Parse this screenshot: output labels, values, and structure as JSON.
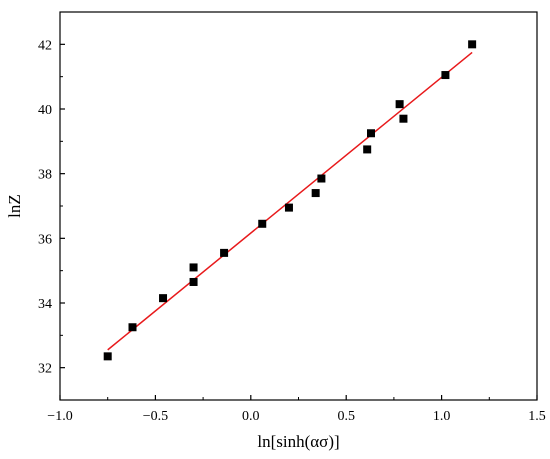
{
  "chart_data": {
    "type": "scatter",
    "title": "",
    "xlabel": "ln[sinh(ασ)]",
    "ylabel": "lnZ",
    "xlim": [
      -1.0,
      1.5
    ],
    "ylim": [
      31,
      43
    ],
    "xticks": [
      -1.0,
      -0.5,
      0.0,
      0.5,
      1.0,
      1.5
    ],
    "xtick_labels": [
      "−1.0",
      "−0.5",
      "0.0",
      "0.5",
      "1.0",
      "1.5"
    ],
    "yticks": [
      32,
      34,
      36,
      38,
      40,
      42
    ],
    "ytick_labels": [
      "32",
      "34",
      "36",
      "38",
      "40",
      "42"
    ],
    "grid": false,
    "marker_color": "#000000",
    "fit_color": "#e8191b",
    "points": [
      {
        "x": -0.75,
        "y": 32.35
      },
      {
        "x": -0.62,
        "y": 33.25
      },
      {
        "x": -0.46,
        "y": 34.15
      },
      {
        "x": -0.3,
        "y": 35.1
      },
      {
        "x": -0.3,
        "y": 34.65
      },
      {
        "x": -0.14,
        "y": 35.55
      },
      {
        "x": 0.06,
        "y": 36.45
      },
      {
        "x": 0.2,
        "y": 36.95
      },
      {
        "x": 0.34,
        "y": 37.4
      },
      {
        "x": 0.37,
        "y": 37.85
      },
      {
        "x": 0.61,
        "y": 38.75
      },
      {
        "x": 0.63,
        "y": 39.25
      },
      {
        "x": 0.78,
        "y": 40.15
      },
      {
        "x": 0.8,
        "y": 39.7
      },
      {
        "x": 1.02,
        "y": 41.05
      },
      {
        "x": 1.16,
        "y": 42.0
      }
    ],
    "fit_line": {
      "x": [
        -0.75,
        1.16
      ],
      "y": [
        32.55,
        41.75
      ]
    }
  }
}
